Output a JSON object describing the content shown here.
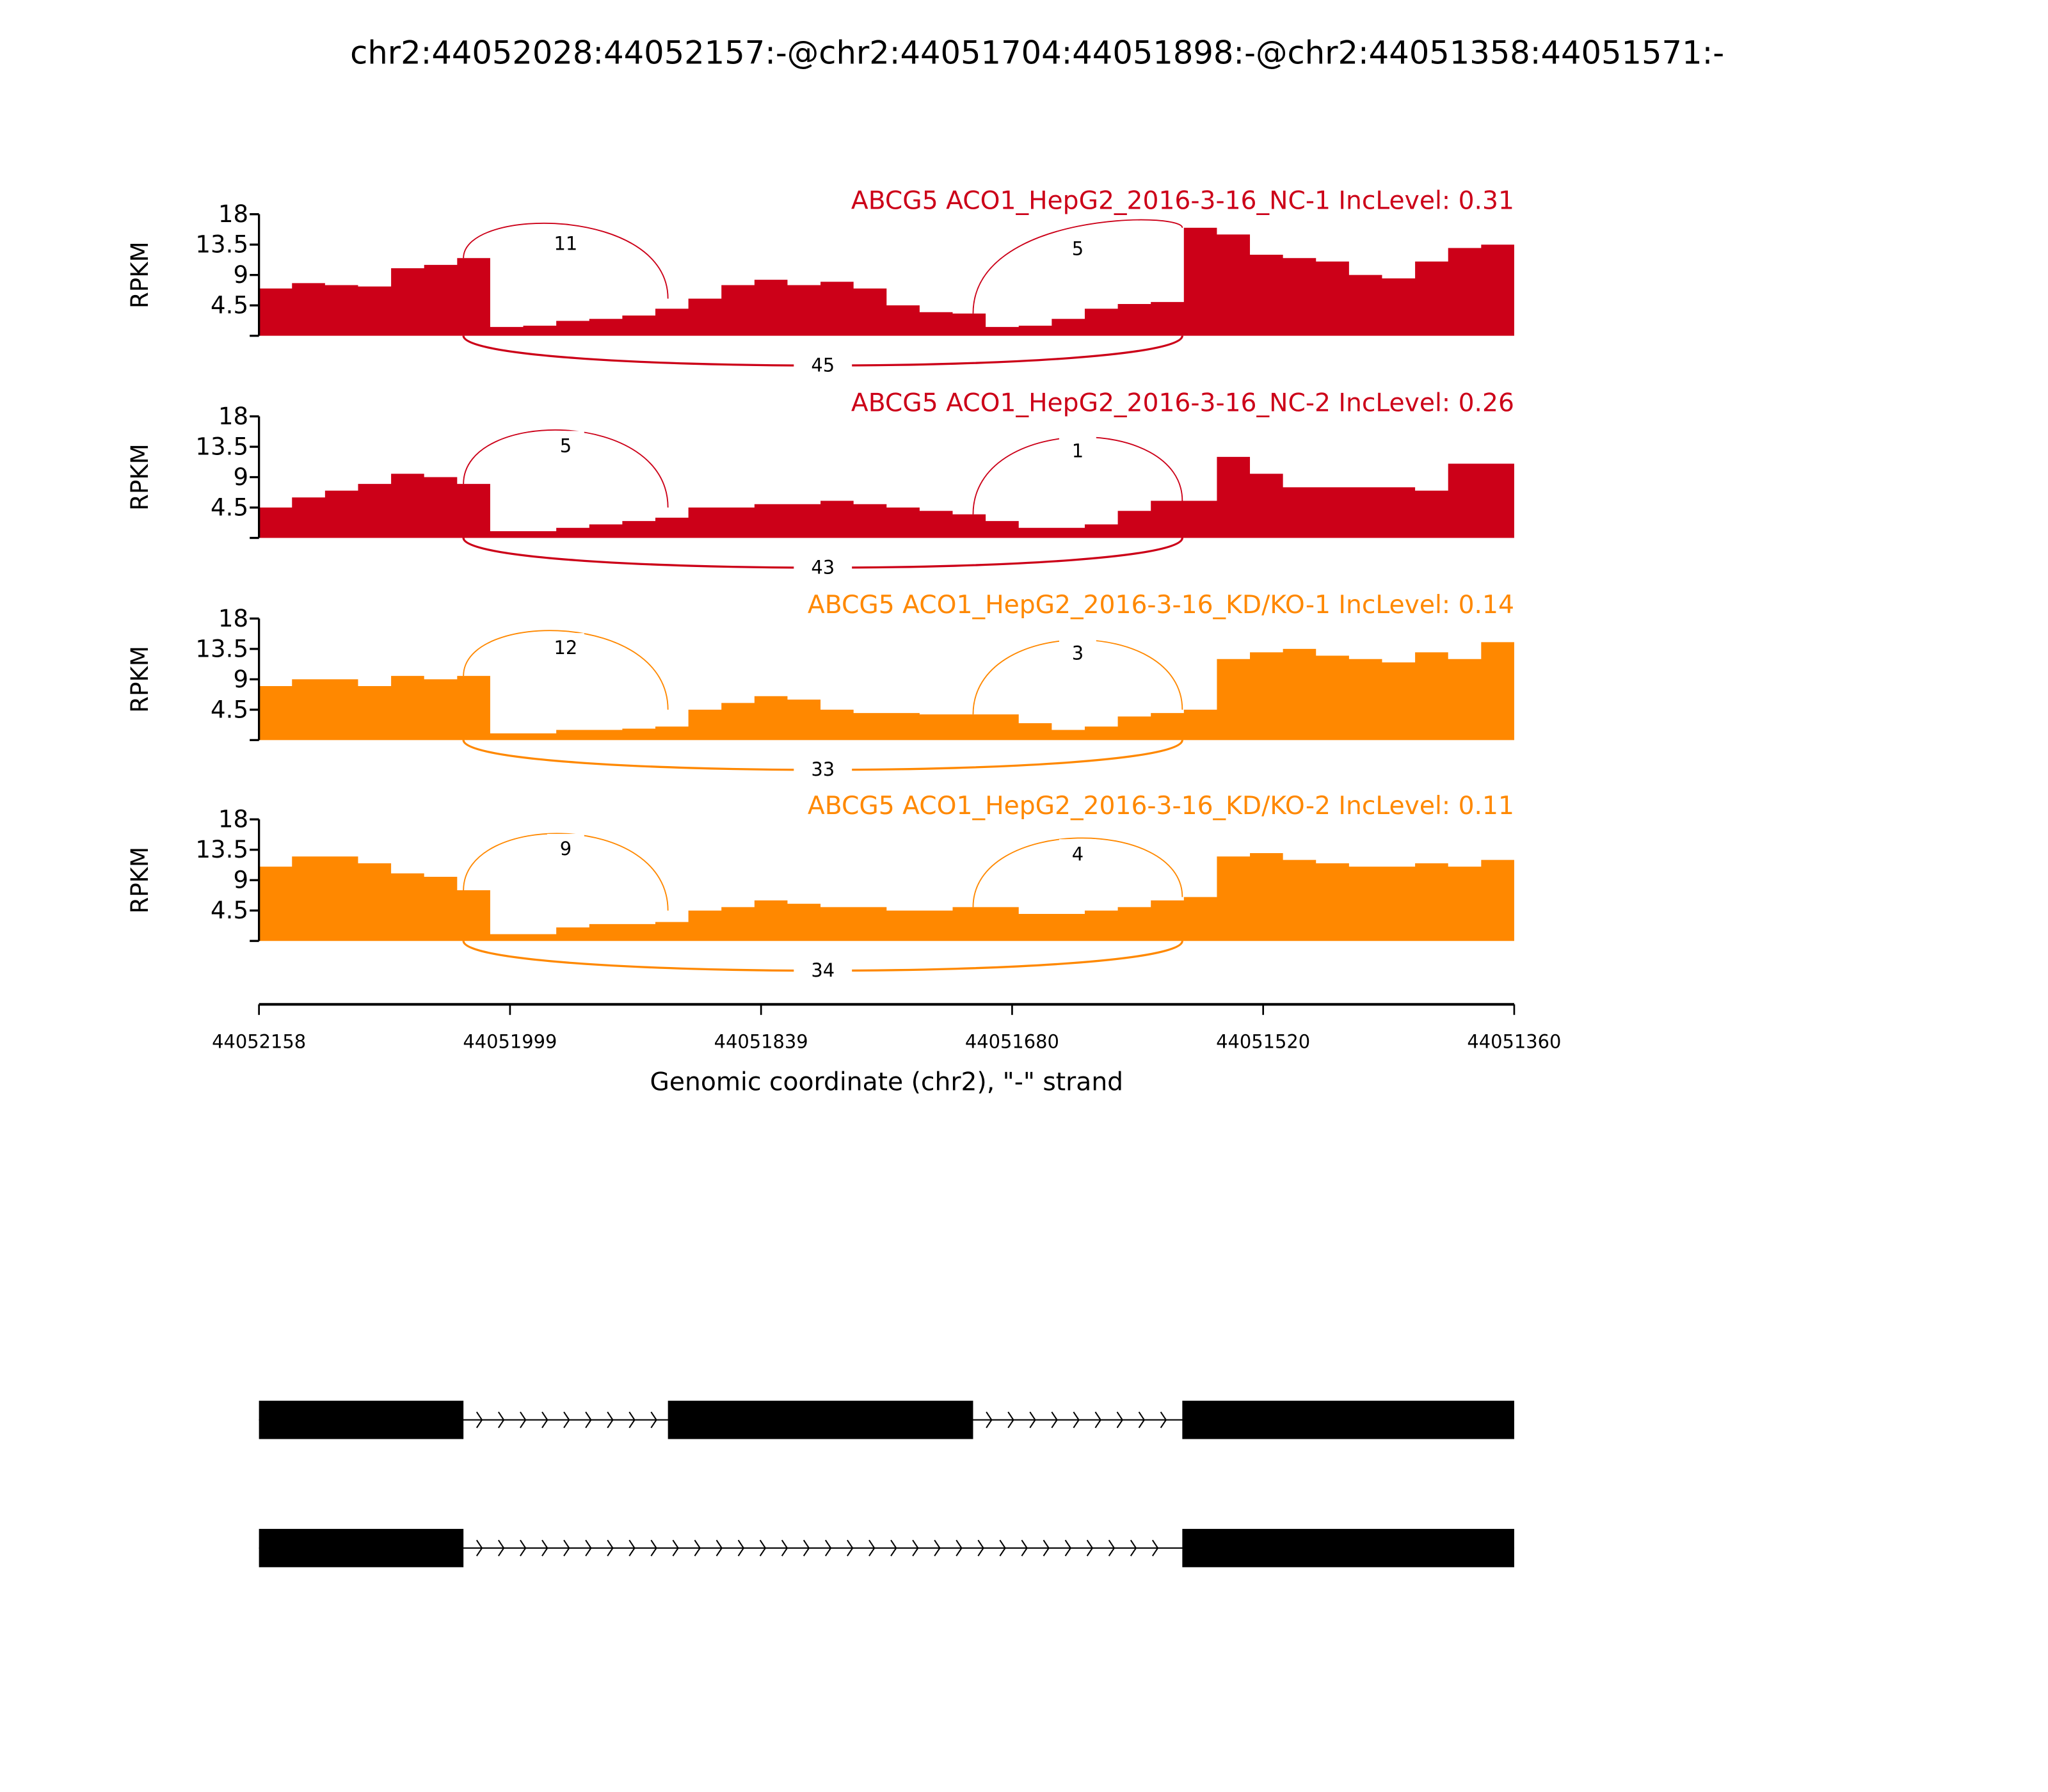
{
  "colors": {
    "nc": "#cc0018",
    "kd": "#ff8800",
    "axis": "#000000",
    "gene": "#000000"
  },
  "chart_data": {
    "type": "area",
    "title": "chr2:44052028:44052157:-@chr2:44051704:44051898:-@chr2:44051358:44051571:-",
    "xlabel": "Genomic coordinate (chr2), \"-\" strand",
    "xlim": [
      44052158,
      44051360
    ],
    "xticks": [
      "44052158",
      "44051999",
      "44051839",
      "44051680",
      "44051520",
      "44051360"
    ],
    "ylabel": "RPKM",
    "ylim": [
      0,
      18
    ],
    "yticks": [
      "18",
      "13.5",
      "9",
      "4.5"
    ],
    "exons": [
      [
        44052158,
        44052028
      ],
      [
        44051898,
        44051704
      ],
      [
        44051571,
        44051360
      ]
    ],
    "panels": [
      {
        "label": "ABCG5 ACO1_HepG2_2016-3-16_NC-1 IncLevel: 0.31",
        "group": "nc",
        "junctions": {
          "upstream_inclusion": "11",
          "downstream_inclusion": "5",
          "skipping": "45"
        },
        "coverage": [
          7,
          7.8,
          7.5,
          7.3,
          10,
          10.5,
          11.5,
          1.3,
          1.5,
          2.2,
          2.5,
          3,
          4,
          5.5,
          7.5,
          8.3,
          7.5,
          8,
          7,
          4.5,
          3.5,
          3.3,
          1.3,
          1.5,
          2.5,
          4,
          4.7,
          5,
          16,
          15,
          12,
          11.5,
          11,
          9,
          8.5,
          11,
          13,
          13.5,
          13.5
        ]
      },
      {
        "label": "ABCG5 ACO1_HepG2_2016-3-16_NC-2 IncLevel: 0.26",
        "group": "nc",
        "junctions": {
          "upstream_inclusion": "5",
          "downstream_inclusion": "1",
          "skipping": "43"
        },
        "coverage": [
          4.5,
          6,
          7,
          8,
          9.5,
          9,
          8,
          1,
          1,
          1.5,
          2,
          2.5,
          3,
          4.5,
          4.5,
          5,
          5,
          5.5,
          5,
          4.5,
          4,
          3.5,
          2.5,
          1.5,
          1.5,
          2,
          4,
          5.5,
          5.5,
          12,
          9.5,
          7.5,
          7.5,
          7.5,
          7.5,
          7,
          11,
          11,
          11
        ]
      },
      {
        "label": "ABCG5 ACO1_HepG2_2016-3-16_KD/KO-1 IncLevel: 0.14",
        "group": "kd",
        "junctions": {
          "upstream_inclusion": "12",
          "downstream_inclusion": "3",
          "skipping": "33"
        },
        "coverage": [
          8,
          9,
          9,
          8,
          9.5,
          9,
          9.5,
          1,
          1,
          1.5,
          1.5,
          1.7,
          2,
          4.5,
          5.5,
          6.5,
          6,
          4.5,
          4,
          4,
          3.8,
          3.8,
          3.8,
          2.5,
          1.5,
          2,
          3.5,
          4,
          4.5,
          12,
          13,
          13.5,
          12.5,
          12,
          11.5,
          13,
          12,
          14.5,
          11.5
        ]
      },
      {
        "label": "ABCG5 ACO1_HepG2_2016-3-16_KD/KO-2 IncLevel: 0.11",
        "group": "kd",
        "junctions": {
          "upstream_inclusion": "9",
          "downstream_inclusion": "4",
          "skipping": "34"
        },
        "coverage": [
          11,
          12.5,
          12.5,
          11.5,
          10,
          9.5,
          7.5,
          1,
          1,
          2,
          2.5,
          2.5,
          2.8,
          4.5,
          5,
          6,
          5.5,
          5,
          5,
          4.5,
          4.5,
          5,
          5,
          4,
          4,
          4.5,
          5,
          6,
          6.5,
          12.5,
          13,
          12,
          11.5,
          11,
          11,
          11.5,
          11,
          12,
          11
        ]
      }
    ],
    "isoforms": [
      {
        "exons": [
          0,
          1,
          2
        ]
      },
      {
        "exons": [
          0,
          2
        ]
      }
    ]
  }
}
